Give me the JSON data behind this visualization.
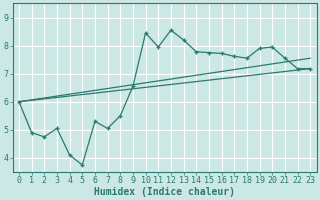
{
  "xlabel": "Humidex (Indice chaleur)",
  "bg_color": "#cce8e5",
  "grid_color": "#ffffff",
  "line_color": "#2a7a70",
  "xlim": [
    -0.5,
    23.5
  ],
  "ylim": [
    3.5,
    9.5
  ],
  "xticks": [
    0,
    1,
    2,
    3,
    4,
    5,
    6,
    7,
    8,
    9,
    10,
    11,
    12,
    13,
    14,
    15,
    16,
    17,
    18,
    19,
    20,
    21,
    22,
    23
  ],
  "yticks": [
    4,
    5,
    6,
    7,
    8,
    9
  ],
  "curve_x": [
    0,
    1,
    2,
    3,
    4,
    5,
    6,
    7,
    8,
    9,
    10,
    11,
    12,
    13,
    14,
    15,
    16,
    17,
    18,
    19,
    20,
    21,
    22,
    23
  ],
  "curve_y": [
    6.0,
    4.9,
    4.75,
    5.05,
    4.1,
    3.75,
    5.3,
    5.05,
    5.5,
    6.55,
    8.45,
    7.95,
    8.55,
    8.2,
    7.78,
    7.75,
    7.72,
    7.62,
    7.55,
    7.9,
    7.95,
    7.55,
    7.18,
    7.18
  ],
  "line1_x": [
    0,
    23
  ],
  "line1_y": [
    6.0,
    7.55
  ],
  "line2_x": [
    0,
    23
  ],
  "line2_y": [
    6.0,
    7.18
  ],
  "xlabel_fontsize": 7,
  "tick_fontsize": 6
}
